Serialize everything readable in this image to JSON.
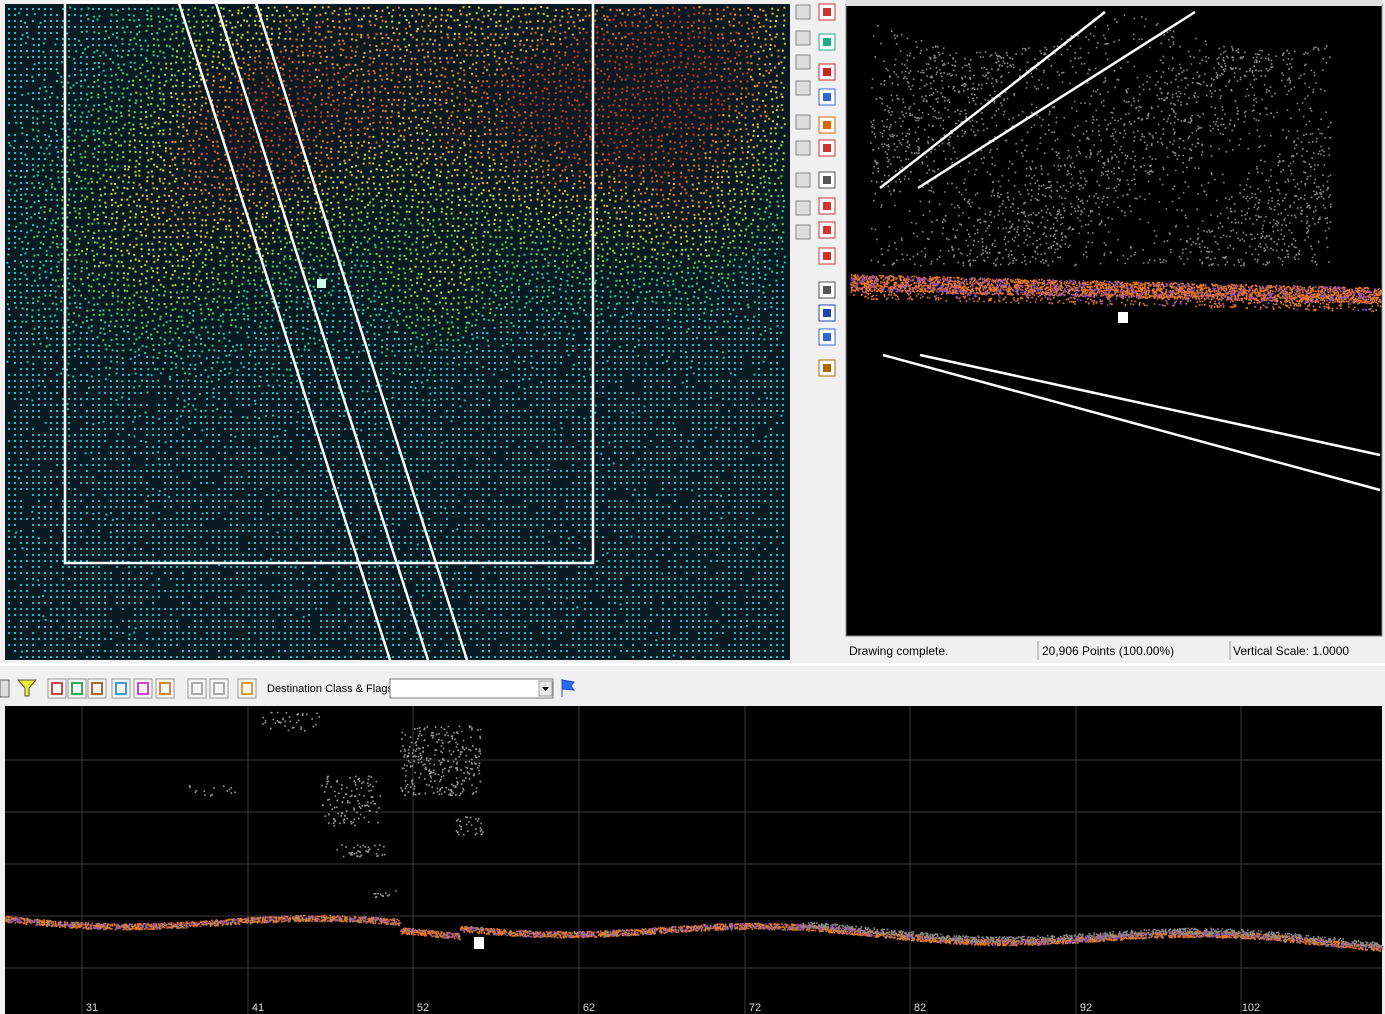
{
  "status": {
    "message": "Drawing complete.",
    "points": "20,906 Points (100.00%)",
    "scale": "Vertical Scale: 1.0000"
  },
  "toolbar": {
    "destination_label": "Destination Class & Flags:"
  },
  "profile": {
    "axis_labels": [
      "31",
      "41",
      "52",
      "62",
      "72",
      "82",
      "92",
      "102"
    ]
  }
}
